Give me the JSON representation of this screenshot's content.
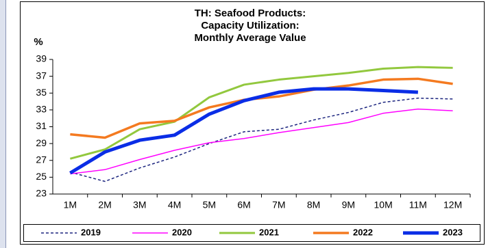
{
  "chart_data": {
    "type": "line",
    "title": [
      "TH: Seafood Products:",
      "Capacity Utilization:",
      "Monthly Average Value"
    ],
    "y_label": "%",
    "categories": [
      "1M",
      "2M",
      "3M",
      "4M",
      "5M",
      "6M",
      "7M",
      "8M",
      "9M",
      "10M",
      "11M",
      "12M"
    ],
    "series": [
      {
        "name": "2019",
        "color": "#1a237e",
        "values": [
          25.6,
          24.5,
          26.1,
          27.4,
          29.0,
          30.4,
          30.7,
          31.8,
          32.7,
          33.9,
          34.4,
          34.3
        ]
      },
      {
        "name": "2020",
        "color": "#ff00ff",
        "values": [
          25.4,
          25.9,
          27.1,
          28.2,
          29.1,
          29.6,
          30.3,
          30.9,
          31.5,
          32.6,
          33.1,
          32.9
        ]
      },
      {
        "name": "2021",
        "color": "#92c83e",
        "values": [
          27.2,
          28.3,
          30.7,
          31.6,
          34.5,
          36.0,
          36.6,
          37.0,
          37.4,
          37.9,
          38.1,
          38.0
        ]
      },
      {
        "name": "2022",
        "color": "#f47a20",
        "values": [
          30.1,
          29.7,
          31.4,
          31.7,
          33.3,
          34.2,
          34.6,
          35.4,
          35.9,
          36.6,
          36.7,
          36.1
        ]
      },
      {
        "name": "2023",
        "color": "#0a2de6",
        "values": [
          25.5,
          28.0,
          29.4,
          30.0,
          32.5,
          34.1,
          35.1,
          35.5,
          35.5,
          35.3,
          35.1,
          null
        ]
      }
    ],
    "ylim": [
      23,
      39
    ],
    "yticks": [
      23,
      25,
      27,
      29,
      31,
      33,
      35,
      37,
      39
    ],
    "grid": false,
    "legend": "bottom"
  }
}
